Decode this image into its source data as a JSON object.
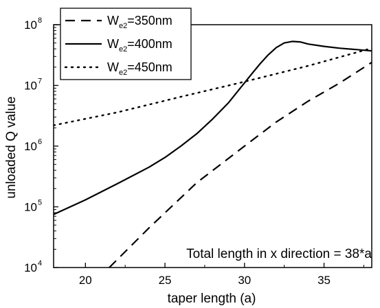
{
  "chart_data": {
    "type": "line",
    "xlabel": "taper length (a)",
    "ylabel": "unloaded Q value",
    "xlim": [
      18,
      38
    ],
    "ylim": [
      10000,
      100000000
    ],
    "yscale": "log",
    "x_ticks": [
      20,
      25,
      30,
      35
    ],
    "x_tick_labels": [
      "20",
      "25",
      "30",
      "35"
    ],
    "y_ticks": [
      10000,
      100000,
      1000000,
      10000000,
      100000000
    ],
    "y_tick_labels": [
      {
        "base": "10",
        "exp": "4"
      },
      {
        "base": "10",
        "exp": "5"
      },
      {
        "base": "10",
        "exp": "6"
      },
      {
        "base": "10",
        "exp": "7"
      },
      {
        "base": "10",
        "exp": "8"
      }
    ],
    "legend_position": "top-left",
    "annotation": "Total length in x direction = 38*a",
    "series": [
      {
        "name_main": "W",
        "name_sub": "e2",
        "name_rest": "=350nm",
        "style": "dashed",
        "x": [
          21.5,
          24,
          27,
          30,
          32,
          34,
          36,
          38
        ],
        "y": [
          10000,
          45000,
          250000,
          1000000,
          2500000,
          5500000,
          11000000,
          24000000
        ]
      },
      {
        "name_main": "W",
        "name_sub": "e2",
        "name_rest": "=400nm",
        "style": "solid",
        "x": [
          18,
          20,
          22,
          24,
          25,
          26,
          27,
          28,
          29,
          30,
          30.5,
          31,
          31.5,
          32,
          32.5,
          33,
          33.5,
          34,
          35,
          36,
          37,
          38
        ],
        "y": [
          75000,
          130000,
          240000,
          450000,
          650000,
          1000000,
          1600000,
          2800000,
          5200000,
          11000000,
          16000000,
          23000000,
          32000000,
          42000000,
          50000000,
          53000000,
          52000000,
          48000000,
          44000000,
          41000000,
          39000000,
          37000000
        ]
      },
      {
        "name_main": "W",
        "name_sub": "e2",
        "name_rest": "=450nm",
        "style": "dotted",
        "x": [
          18,
          22,
          26,
          30,
          34,
          38
        ],
        "y": [
          2200000,
          3600000,
          6500000,
          11500000,
          21000000,
          41000000
        ]
      }
    ]
  }
}
